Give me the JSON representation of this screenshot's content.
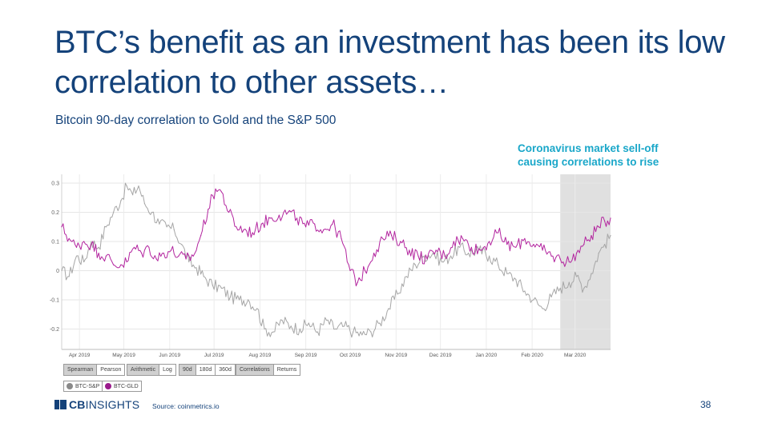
{
  "slide": {
    "title": "BTC’s benefit as an investment has been its low correlation to other assets…",
    "subtitle": "Bitcoin 90-day correlation to Gold and the S&P 500",
    "annotation_line1": "Coronavirus market sell-off",
    "annotation_line2": "causing correlations to rise",
    "source": "Source: coinmetrics.io",
    "page_number": "38",
    "logo_cb": "CB",
    "logo_insights": "INSIGHTS"
  },
  "controls": {
    "method": [
      "Spearman",
      "Pearson"
    ],
    "scale": [
      "Arithmetic",
      "Log"
    ],
    "window": [
      "90d",
      "180d",
      "360d"
    ],
    "view": [
      "Correlations",
      "Returns"
    ],
    "active": [
      "Spearman",
      "Arithmetic",
      "90d",
      "Correlations"
    ]
  },
  "colors": {
    "title": "#14427a",
    "accent": "#1aa7c9",
    "btc_sp": "#a6a6a6",
    "btc_gld": "#b3259f",
    "highlight": "#e0e0e0"
  },
  "chart_data": {
    "type": "line",
    "title": "",
    "xlabel": "",
    "ylabel": "",
    "x_ticks": [
      "Apr 2019",
      "May 2019",
      "Jun 2019",
      "Jul 2019",
      "Aug 2019",
      "Sep 2019",
      "Oct 2019",
      "Nov 2019",
      "Dec 2019",
      "Jan 2020",
      "Feb 2020",
      "Mar 2020"
    ],
    "y_ticks": [
      0.3,
      0.2,
      0.1,
      0,
      -0.1,
      -0.2
    ],
    "ylim": [
      -0.27,
      0.33
    ],
    "x_range": [
      "2019-03-20",
      "2020-03-25"
    ],
    "grid": true,
    "legend_position": "bottom-left",
    "highlight_region": {
      "from": "2020-02-20",
      "to": "2020-03-25"
    },
    "series": [
      {
        "name": "BTC-S&P",
        "color": "#a6a6a6",
        "points": [
          [
            "2019-03-20",
            0.0
          ],
          [
            "2019-03-25",
            -0.02
          ],
          [
            "2019-03-30",
            0.05
          ],
          [
            "2019-04-04",
            0.03
          ],
          [
            "2019-04-09",
            0.1
          ],
          [
            "2019-04-14",
            0.08
          ],
          [
            "2019-04-19",
            0.15
          ],
          [
            "2019-04-24",
            0.2
          ],
          [
            "2019-04-29",
            0.24
          ],
          [
            "2019-05-03",
            0.29
          ],
          [
            "2019-05-07",
            0.26
          ],
          [
            "2019-05-11",
            0.29
          ],
          [
            "2019-05-15",
            0.23
          ],
          [
            "2019-05-20",
            0.2
          ],
          [
            "2019-05-25",
            0.16
          ],
          [
            "2019-05-30",
            0.15
          ],
          [
            "2019-06-04",
            0.14
          ],
          [
            "2019-06-09",
            0.09
          ],
          [
            "2019-06-14",
            0.03
          ],
          [
            "2019-06-19",
            0.01
          ],
          [
            "2019-06-24",
            -0.02
          ],
          [
            "2019-06-30",
            -0.05
          ],
          [
            "2019-07-06",
            -0.06
          ],
          [
            "2019-07-12",
            -0.09
          ],
          [
            "2019-07-18",
            -0.1
          ],
          [
            "2019-07-24",
            -0.1
          ],
          [
            "2019-07-30",
            -0.13
          ],
          [
            "2019-08-04",
            -0.2
          ],
          [
            "2019-08-10",
            -0.21
          ],
          [
            "2019-08-16",
            -0.17
          ],
          [
            "2019-08-22",
            -0.19
          ],
          [
            "2019-08-28",
            -0.2
          ],
          [
            "2019-09-03",
            -0.18
          ],
          [
            "2019-09-09",
            -0.21
          ],
          [
            "2019-09-15",
            -0.17
          ],
          [
            "2019-09-21",
            -0.2
          ],
          [
            "2019-09-27",
            -0.19
          ],
          [
            "2019-10-03",
            -0.21
          ],
          [
            "2019-10-09",
            -0.22
          ],
          [
            "2019-10-15",
            -0.21
          ],
          [
            "2019-10-21",
            -0.18
          ],
          [
            "2019-10-27",
            -0.13
          ],
          [
            "2019-11-02",
            -0.08
          ],
          [
            "2019-11-08",
            -0.02
          ],
          [
            "2019-11-14",
            0.02
          ],
          [
            "2019-11-20",
            0.05
          ],
          [
            "2019-11-26",
            0.06
          ],
          [
            "2019-12-02",
            0.03
          ],
          [
            "2019-12-08",
            0.05
          ],
          [
            "2019-12-14",
            0.08
          ],
          [
            "2019-12-20",
            0.06
          ],
          [
            "2019-12-27",
            0.07
          ],
          [
            "2020-01-03",
            0.05
          ],
          [
            "2020-01-09",
            0.02
          ],
          [
            "2020-01-15",
            -0.01
          ],
          [
            "2020-01-21",
            -0.03
          ],
          [
            "2020-01-27",
            -0.07
          ],
          [
            "2020-02-02",
            -0.1
          ],
          [
            "2020-02-08",
            -0.13
          ],
          [
            "2020-02-14",
            -0.09
          ],
          [
            "2020-02-20",
            -0.06
          ],
          [
            "2020-02-26",
            -0.04
          ],
          [
            "2020-03-02",
            -0.02
          ],
          [
            "2020-03-07",
            -0.06
          ],
          [
            "2020-03-12",
            -0.01
          ],
          [
            "2020-03-17",
            0.06
          ],
          [
            "2020-03-21",
            0.09
          ],
          [
            "2020-03-25",
            0.12
          ]
        ]
      },
      {
        "name": "BTC-GLD",
        "color": "#b3259f",
        "points": [
          [
            "2019-03-20",
            0.15
          ],
          [
            "2019-03-25",
            0.11
          ],
          [
            "2019-03-30",
            0.08
          ],
          [
            "2019-04-04",
            0.1
          ],
          [
            "2019-04-09",
            0.09
          ],
          [
            "2019-04-14",
            0.06
          ],
          [
            "2019-04-19",
            0.05
          ],
          [
            "2019-04-24",
            0.02
          ],
          [
            "2019-04-29",
            0.02
          ],
          [
            "2019-05-03",
            0.03
          ],
          [
            "2019-05-08",
            0.08
          ],
          [
            "2019-05-13",
            0.06
          ],
          [
            "2019-05-18",
            0.08
          ],
          [
            "2019-05-23",
            0.04
          ],
          [
            "2019-05-28",
            0.06
          ],
          [
            "2019-06-02",
            0.07
          ],
          [
            "2019-06-07",
            0.05
          ],
          [
            "2019-06-12",
            0.04
          ],
          [
            "2019-06-17",
            0.05
          ],
          [
            "2019-06-22",
            0.12
          ],
          [
            "2019-06-27",
            0.21
          ],
          [
            "2019-07-02",
            0.28
          ],
          [
            "2019-07-06",
            0.27
          ],
          [
            "2019-07-11",
            0.2
          ],
          [
            "2019-07-16",
            0.15
          ],
          [
            "2019-07-21",
            0.14
          ],
          [
            "2019-07-27",
            0.13
          ],
          [
            "2019-08-02",
            0.16
          ],
          [
            "2019-08-08",
            0.18
          ],
          [
            "2019-08-14",
            0.19
          ],
          [
            "2019-08-20",
            0.2
          ],
          [
            "2019-08-26",
            0.18
          ],
          [
            "2019-09-01",
            0.15
          ],
          [
            "2019-09-07",
            0.16
          ],
          [
            "2019-09-13",
            0.14
          ],
          [
            "2019-09-19",
            0.16
          ],
          [
            "2019-09-25",
            0.11
          ],
          [
            "2019-10-01",
            0.0
          ],
          [
            "2019-10-06",
            -0.04
          ],
          [
            "2019-10-11",
            0.0
          ],
          [
            "2019-10-17",
            0.06
          ],
          [
            "2019-10-23",
            0.11
          ],
          [
            "2019-10-29",
            0.12
          ],
          [
            "2019-11-04",
            0.1
          ],
          [
            "2019-11-10",
            0.07
          ],
          [
            "2019-11-16",
            0.05
          ],
          [
            "2019-11-22",
            0.04
          ],
          [
            "2019-11-28",
            0.07
          ],
          [
            "2019-12-04",
            0.05
          ],
          [
            "2019-12-10",
            0.1
          ],
          [
            "2019-12-16",
            0.11
          ],
          [
            "2019-12-22",
            0.08
          ],
          [
            "2019-12-28",
            0.07
          ],
          [
            "2020-01-03",
            0.1
          ],
          [
            "2020-01-09",
            0.13
          ],
          [
            "2020-01-15",
            0.09
          ],
          [
            "2020-01-21",
            0.08
          ],
          [
            "2020-01-27",
            0.11
          ],
          [
            "2020-02-02",
            0.09
          ],
          [
            "2020-02-08",
            0.07
          ],
          [
            "2020-02-14",
            0.05
          ],
          [
            "2020-02-20",
            0.04
          ],
          [
            "2020-02-26",
            0.03
          ],
          [
            "2020-03-02",
            0.06
          ],
          [
            "2020-03-07",
            0.09
          ],
          [
            "2020-03-12",
            0.12
          ],
          [
            "2020-03-17",
            0.15
          ],
          [
            "2020-03-21",
            0.17
          ],
          [
            "2020-03-25",
            0.18
          ]
        ]
      }
    ]
  }
}
